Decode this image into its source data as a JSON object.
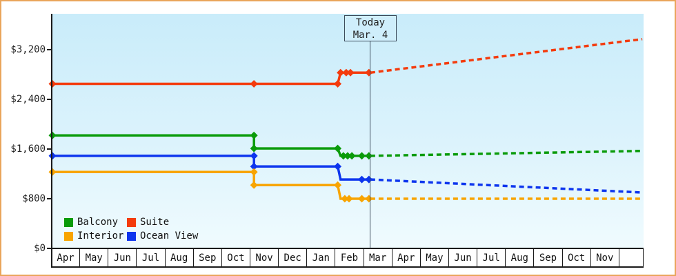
{
  "today_box": {
    "line1": "Today",
    "line2": "Mar. 4"
  },
  "y_axis": {
    "tick_labels": [
      {
        "label": "$3,200",
        "value": 3200
      },
      {
        "label": "$2,400",
        "value": 2400
      },
      {
        "label": "$1,600",
        "value": 1600
      },
      {
        "label": "$800",
        "value": 800
      },
      {
        "label": "$0",
        "value": 0
      }
    ]
  },
  "x_axis": {
    "months": [
      "Apr",
      "May",
      "Jun",
      "Jul",
      "Aug",
      "Sep",
      "Oct",
      "Nov",
      "Dec",
      "Jan",
      "Feb",
      "Mar",
      "Apr",
      "May",
      "Jun",
      "Jul",
      "Aug",
      "Sep",
      "Oct",
      "Nov"
    ]
  },
  "legend": {
    "items": [
      {
        "label": "Balcony",
        "color": "#0a9b0a"
      },
      {
        "label": "Suite",
        "color": "#f43b0d"
      },
      {
        "label": "Interior",
        "color": "#f8a400"
      },
      {
        "label": "Ocean View",
        "color": "#0d35ee"
      }
    ]
  },
  "colors": {
    "frame_border": "#e9a55b",
    "axis": "#1a1a1a",
    "today_line": "#3b4a5a",
    "plot_bg_top": "#c9ecfa",
    "plot_bg_bottom": "#f0fbfe"
  },
  "chart_data": {
    "type": "line",
    "title": "Cabin price history with Today (Mar. 4) marker and dashed future projection",
    "x_unit": "months (0 = Apr start, 11 = Mar start, 11.17 = today Mar. 4)",
    "today_x": 11.17,
    "x_max": 20.78,
    "ylim": [
      0,
      3600
    ],
    "y_ticks": [
      0,
      800,
      1600,
      2400,
      3200
    ],
    "legend_position": "bottom-left",
    "grid": false,
    "series": [
      {
        "name": "Suite",
        "color": "#f43b0d",
        "solid": [
          [
            0,
            2650
          ],
          [
            7.1,
            2650
          ],
          [
            10.05,
            2650
          ],
          [
            10.15,
            2830
          ],
          [
            11.15,
            2830
          ]
        ],
        "markers": [
          [
            0,
            2650
          ],
          [
            7.1,
            2650
          ],
          [
            10.05,
            2650
          ],
          [
            10.15,
            2830
          ],
          [
            10.35,
            2830
          ],
          [
            10.5,
            2830
          ],
          [
            11.15,
            2830
          ]
        ],
        "dashed": [
          [
            11.2,
            2830
          ],
          [
            20.78,
            3370
          ]
        ]
      },
      {
        "name": "Balcony",
        "color": "#0a9b0a",
        "solid": [
          [
            0,
            1820
          ],
          [
            7.1,
            1820
          ],
          [
            7.1,
            1610
          ],
          [
            10.05,
            1610
          ],
          [
            10.15,
            1490
          ],
          [
            11.15,
            1490
          ]
        ],
        "markers": [
          [
            0,
            1820
          ],
          [
            7.1,
            1820
          ],
          [
            7.1,
            1610
          ],
          [
            10.05,
            1610
          ],
          [
            10.25,
            1490
          ],
          [
            10.4,
            1490
          ],
          [
            10.55,
            1490
          ],
          [
            10.9,
            1490
          ],
          [
            11.15,
            1490
          ]
        ],
        "dashed": [
          [
            11.2,
            1490
          ],
          [
            20.78,
            1570
          ]
        ]
      },
      {
        "name": "Ocean View",
        "color": "#0d35ee",
        "solid": [
          [
            0,
            1490
          ],
          [
            7.1,
            1490
          ],
          [
            7.1,
            1320
          ],
          [
            10.05,
            1320
          ],
          [
            10.15,
            1110
          ],
          [
            11.15,
            1110
          ]
        ],
        "markers": [
          [
            0,
            1490
          ],
          [
            7.1,
            1490
          ],
          [
            7.1,
            1320
          ],
          [
            10.05,
            1320
          ],
          [
            10.9,
            1110
          ],
          [
            11.15,
            1110
          ]
        ],
        "dashed": [
          [
            11.2,
            1110
          ],
          [
            20.78,
            900
          ]
        ]
      },
      {
        "name": "Interior",
        "color": "#f8a400",
        "solid": [
          [
            0,
            1230
          ],
          [
            7.1,
            1230
          ],
          [
            7.1,
            1020
          ],
          [
            10.05,
            1020
          ],
          [
            10.15,
            800
          ],
          [
            11.15,
            800
          ]
        ],
        "markers": [
          [
            0,
            1230
          ],
          [
            7.1,
            1230
          ],
          [
            7.1,
            1020
          ],
          [
            10.05,
            1020
          ],
          [
            10.3,
            800
          ],
          [
            10.45,
            800
          ],
          [
            10.9,
            800
          ],
          [
            11.15,
            800
          ]
        ],
        "dashed": [
          [
            11.2,
            800
          ],
          [
            20.78,
            800
          ]
        ]
      }
    ]
  }
}
